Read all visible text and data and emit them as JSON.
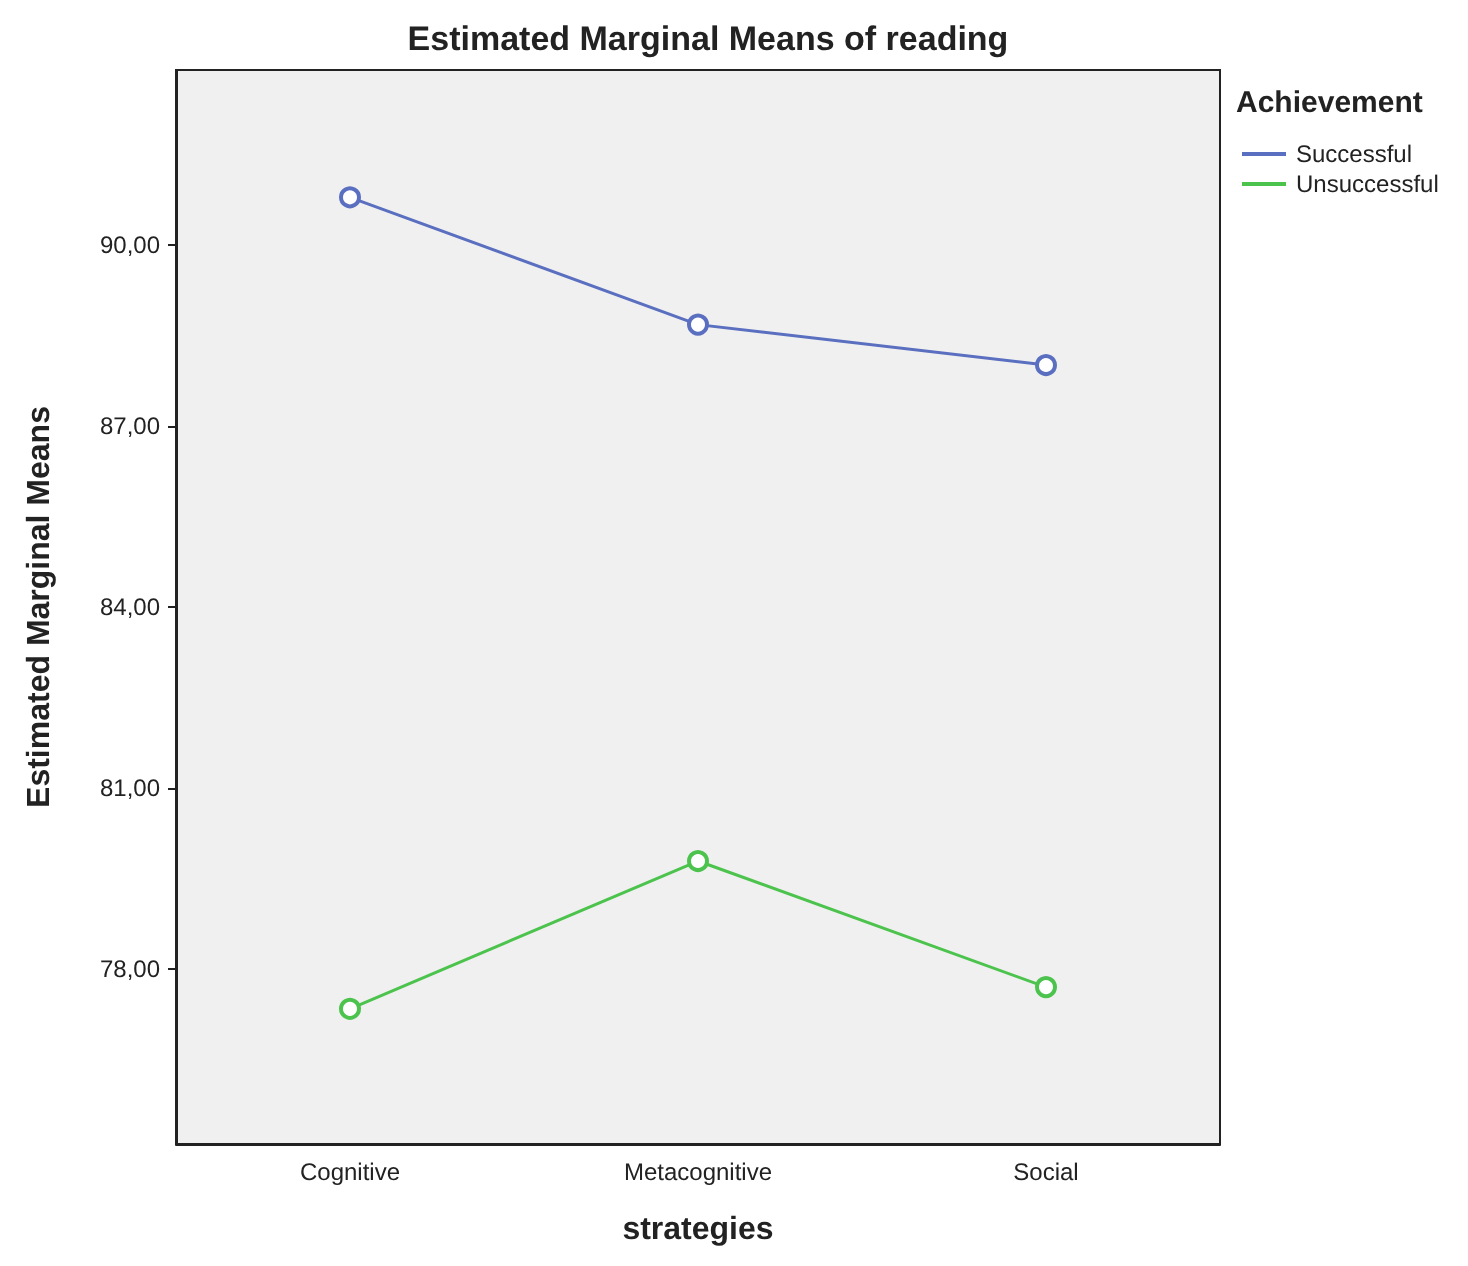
{
  "chart_data": {
    "type": "line",
    "title": "Estimated Marginal Means of reading",
    "xlabel": "strategies",
    "ylabel": "Estimated Marginal Means",
    "legend_title": "Achievement",
    "categories": [
      "Cognitive",
      "Metacognitive",
      "Social"
    ],
    "series": [
      {
        "name": "Successful",
        "color": "#5a6fc0",
        "values": [
          90.79,
          88.68,
          88.01
        ]
      },
      {
        "name": "Unsuccessful",
        "color": "#4cc34c",
        "values": [
          77.34,
          79.79,
          77.7
        ]
      }
    ],
    "ylim": [
      75.1,
      92.9
    ],
    "yticks": [
      {
        "value": 78,
        "label": "78,00"
      },
      {
        "value": 81,
        "label": "81,00"
      },
      {
        "value": 84,
        "label": "84,00"
      },
      {
        "value": 87,
        "label": "87,00"
      },
      {
        "value": 90,
        "label": "90,00"
      }
    ],
    "marker": "circle",
    "legend": "right",
    "grid": false
  }
}
